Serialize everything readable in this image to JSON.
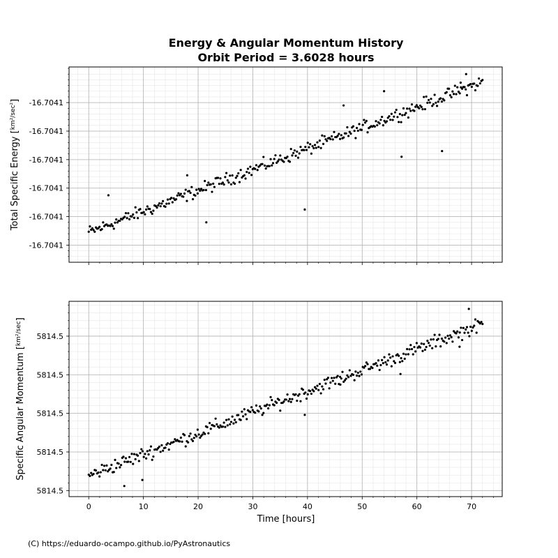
{
  "title_line1": "Energy & Angular Momentum History",
  "title_line2": "Orbit Period = 3.6028 hours",
  "credit": "(C) https://eduardo-ocampo.github.io/PyAstronautics",
  "colors": {
    "marker": "#000000",
    "major_grid": "#b0b0b0",
    "minor_grid": "#e6e6e6"
  },
  "chart_data": [
    {
      "type": "scatter",
      "name": "energy",
      "ylabel_main": "Total Specific Energy [",
      "ylabel_unit_num": "km²",
      "ylabel_unit_den": "sec²",
      "ylabel_close": "]",
      "xlim": [
        -3.6,
        75.6
      ],
      "ylim": [
        -1.2,
        12.5
      ],
      "yticks": [
        0,
        2,
        4,
        6,
        8,
        10
      ],
      "ytick_labels": [
        "-16.7041",
        "-16.7041",
        "-16.7041",
        "-16.7041",
        "-16.7041",
        "-16.7041"
      ],
      "grid": true,
      "trend": {
        "start": 0.9,
        "end": 11.45,
        "noise": 0.45
      },
      "outliers": [
        [
          3.6,
          3.5
        ],
        [
          18.0,
          4.9
        ],
        [
          21.5,
          1.6
        ],
        [
          39.5,
          2.5
        ],
        [
          46.6,
          9.8
        ],
        [
          54.0,
          10.8
        ],
        [
          57.2,
          6.2
        ],
        [
          64.6,
          6.6
        ],
        [
          68.0,
          11.4
        ],
        [
          69.0,
          12.0
        ]
      ]
    },
    {
      "type": "scatter",
      "name": "angular_momentum",
      "ylabel_main": "Specific Angular Momentum [",
      "ylabel_unit_num": "km²",
      "ylabel_unit_den": "sec",
      "ylabel_close": "]",
      "xlim": [
        -3.6,
        75.6
      ],
      "ylim": [
        -0.4,
        12.5
      ],
      "yticks": [
        0,
        2.55,
        5.1,
        7.65,
        10.2
      ],
      "ytick_labels": [
        "5814.5",
        "5814.5",
        "5814.5",
        "5814.5",
        "5814.5"
      ],
      "xlabel": "Time [hours]",
      "xticks": [
        0,
        10,
        20,
        30,
        40,
        50,
        60,
        70
      ],
      "xtick_labels": [
        "0",
        "10",
        "20",
        "30",
        "40",
        "50",
        "60",
        "70"
      ],
      "grid": true,
      "trend": {
        "start": 1.0,
        "end": 11.0,
        "noise": 0.45
      },
      "outliers": [
        [
          6.5,
          0.3
        ],
        [
          9.8,
          0.7
        ],
        [
          39.5,
          5.0
        ],
        [
          46.0,
          7.0
        ],
        [
          57.0,
          7.7
        ],
        [
          67.8,
          9.5
        ],
        [
          69.5,
          12.0
        ]
      ]
    }
  ]
}
